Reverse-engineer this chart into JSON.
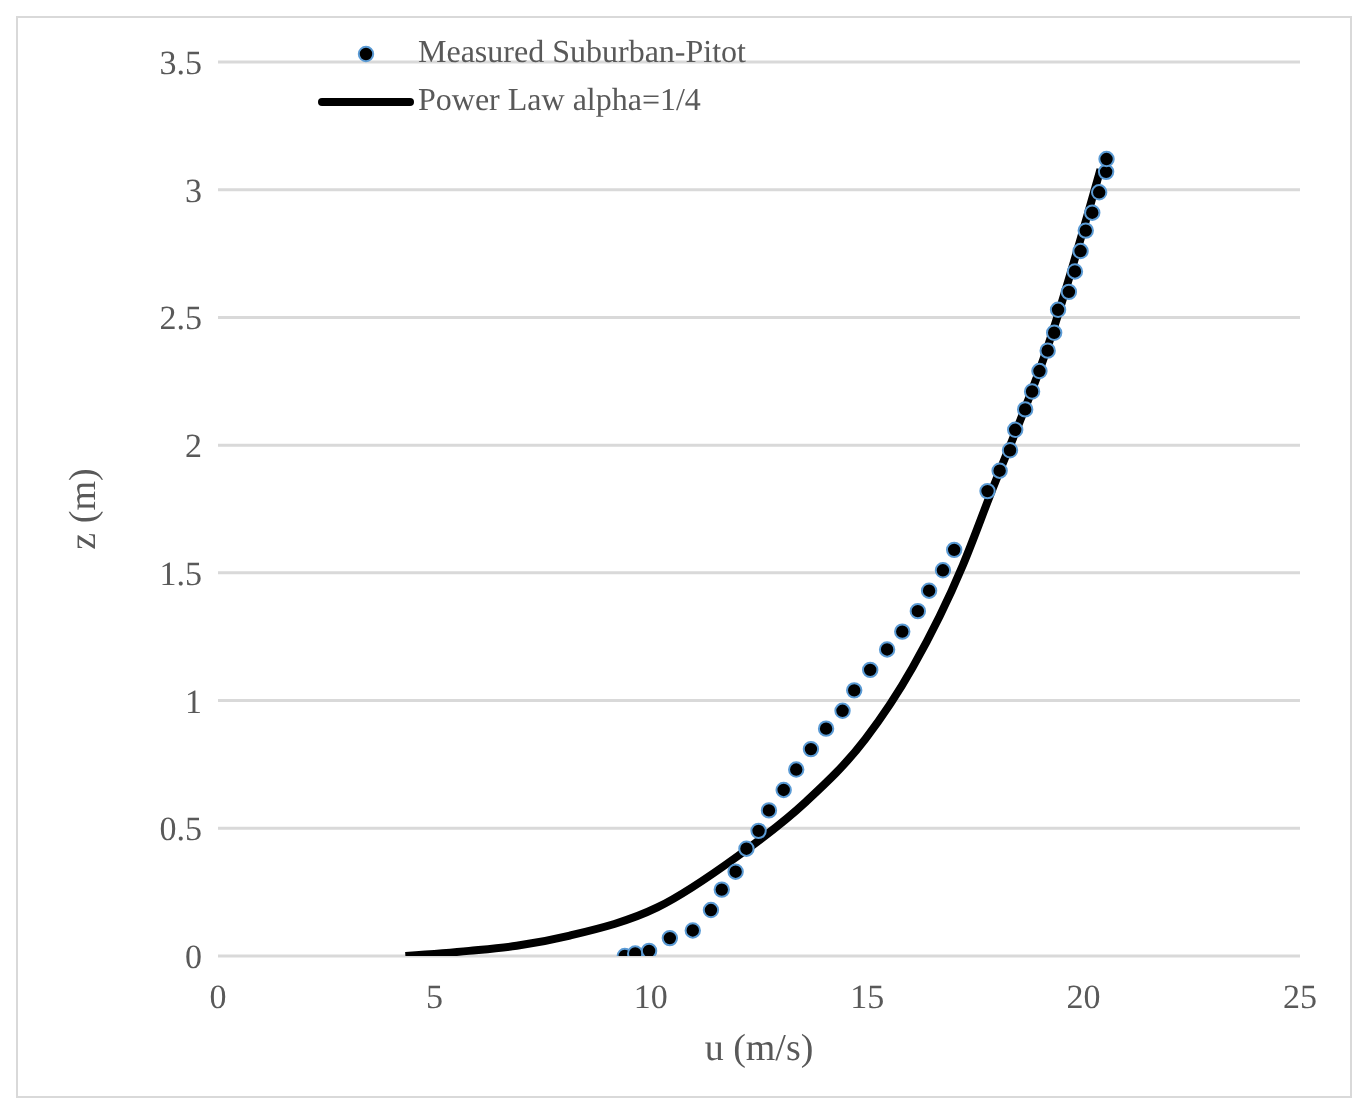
{
  "chart_data": {
    "type": "scatter",
    "xlabel": "u (m/s)",
    "ylabel": "z (m)",
    "xlim": [
      0,
      25
    ],
    "xticks": [
      0,
      5,
      10,
      15,
      20,
      25
    ],
    "ylim": [
      0,
      3.5
    ],
    "yticks": [
      0,
      0.5,
      1,
      1.5,
      2,
      2.5,
      3,
      3.5
    ],
    "grid": "y",
    "legend": "top left",
    "series": [
      {
        "name": "Measured Suburban-Pitot",
        "color": "#000000",
        "marker": "circle",
        "x": [
          9.4,
          9.64,
          9.96,
          10.44,
          10.97,
          11.39,
          11.64,
          11.96,
          12.21,
          12.49,
          12.73,
          13.07,
          13.36,
          13.7,
          14.05,
          14.43,
          14.7,
          15.07,
          15.46,
          15.81,
          16.17,
          16.43,
          16.75,
          17.01,
          17.78,
          18.06,
          18.3,
          18.42,
          18.65,
          18.81,
          18.98,
          19.17,
          19.32,
          19.41,
          19.66,
          19.8,
          19.93,
          20.05,
          20.2,
          20.36,
          20.52,
          20.53
        ],
        "values": [
          0,
          0.01,
          0.02,
          0.07,
          0.1,
          0.18,
          0.26,
          0.33,
          0.42,
          0.49,
          0.57,
          0.65,
          0.73,
          0.81,
          0.89,
          0.96,
          1.04,
          1.12,
          1.2,
          1.27,
          1.35,
          1.43,
          1.51,
          1.59,
          1.82,
          1.9,
          1.98,
          2.06,
          2.14,
          2.21,
          2.29,
          2.37,
          2.44,
          2.53,
          2.6,
          2.68,
          2.76,
          2.84,
          2.91,
          2.99,
          3.07,
          3.12
        ]
      },
      {
        "name": "Power Law alpha=1/4",
        "type": "line",
        "color": "#000000",
        "marker": "none",
        "x": [
          4.33,
          5.8,
          6.9,
          8.13,
          10.15,
          12.0,
          13.56,
          14.96,
          16.05,
          17.21,
          17.83,
          19.2,
          20.39
        ],
        "values": [
          0,
          0.02,
          0.04,
          0.08,
          0.19,
          0.39,
          0.6,
          0.85,
          1.13,
          1.53,
          1.8,
          2.4,
          3.08
        ]
      }
    ]
  }
}
